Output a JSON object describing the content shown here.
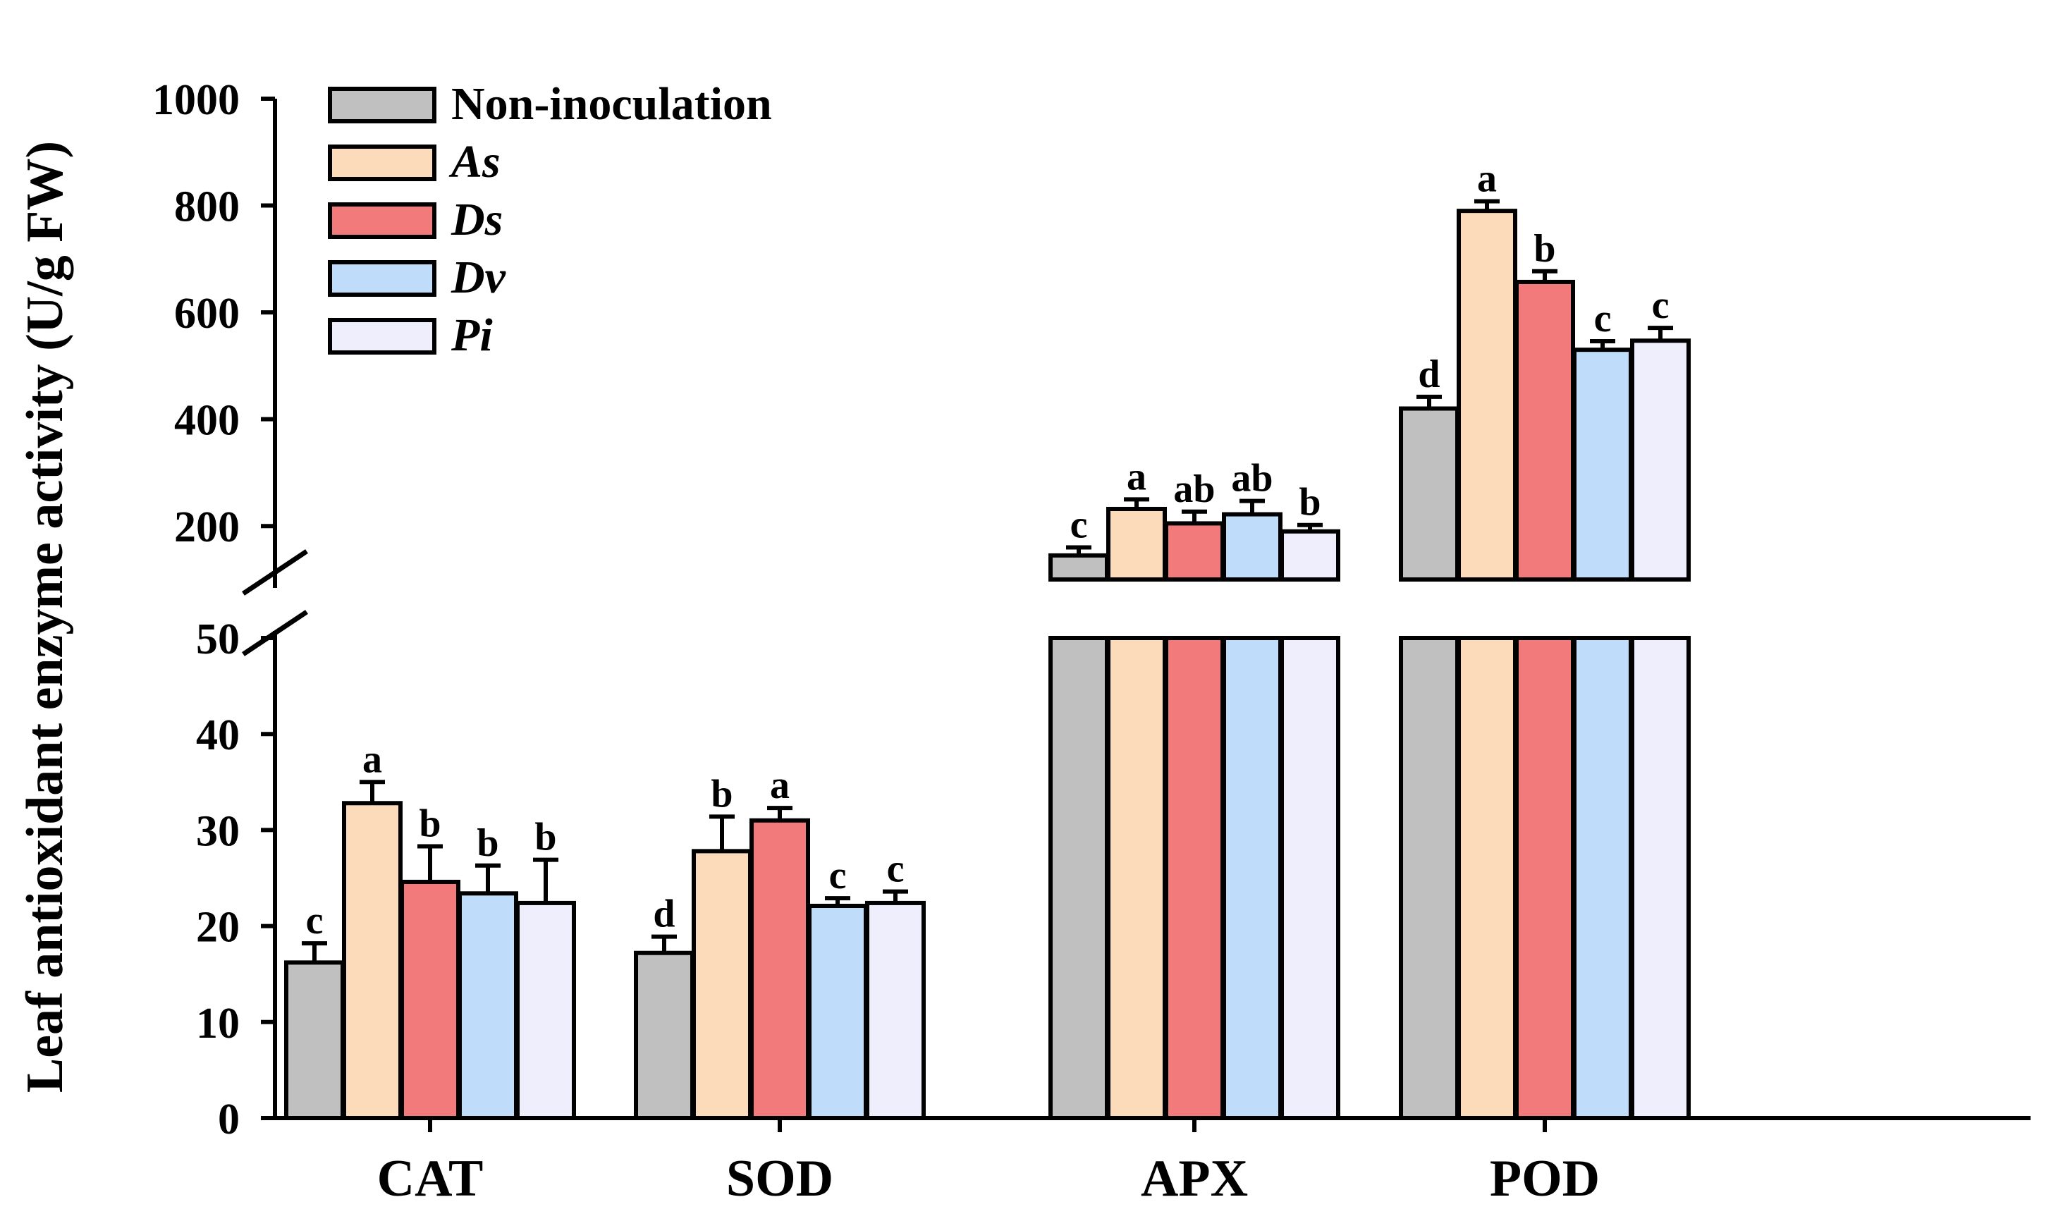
{
  "chart_data": {
    "type": "bar",
    "ylabel": "Leaf antioxidant enzyme activity (U/g FW)",
    "xlabel": "",
    "categories": [
      "CAT",
      "SOD",
      "APX",
      "POD"
    ],
    "y_axis": {
      "broken": true,
      "lower_range": [
        0,
        50
      ],
      "lower_ticks": [
        "0",
        "10",
        "20",
        "30",
        "40",
        "50"
      ],
      "upper_range": [
        100,
        1000
      ],
      "upper_ticks": [
        "200",
        "400",
        "600",
        "800",
        "1000"
      ]
    },
    "legend_position": "top-left",
    "series": [
      {
        "name": "Non-inoculation",
        "italic": false,
        "color": "#c0c0c0",
        "values": [
          16.2,
          17.2,
          145,
          420
        ],
        "errors": [
          2.0,
          1.7,
          15,
          22
        ],
        "letters": [
          "c",
          "d",
          "c",
          "d"
        ]
      },
      {
        "name": "As",
        "italic": true,
        "color": "#fbdbb9",
        "values": [
          32.8,
          27.8,
          232,
          790
        ],
        "errors": [
          2.2,
          3.6,
          18,
          18
        ],
        "letters": [
          "a",
          "b",
          "a",
          "a"
        ]
      },
      {
        "name": "Ds",
        "italic": true,
        "color": "#f27a7b",
        "values": [
          24.6,
          31.0,
          205,
          657
        ],
        "errors": [
          3.7,
          1.3,
          22,
          20
        ],
        "letters": [
          "b",
          "a",
          "ab",
          "b"
        ]
      },
      {
        "name": "Dv",
        "italic": true,
        "color": "#bfdcfb",
        "values": [
          23.4,
          22.1,
          222,
          530
        ],
        "errors": [
          2.9,
          0.8,
          25,
          16
        ],
        "letters": [
          "b",
          "c",
          "ab",
          "c"
        ]
      },
      {
        "name": "Pi",
        "italic": true,
        "color": "#efeefd",
        "values": [
          22.4,
          22.4,
          190,
          547
        ],
        "errors": [
          4.5,
          1.2,
          12,
          24
        ],
        "letters": [
          "b",
          "c",
          "b",
          "c"
        ]
      }
    ]
  }
}
